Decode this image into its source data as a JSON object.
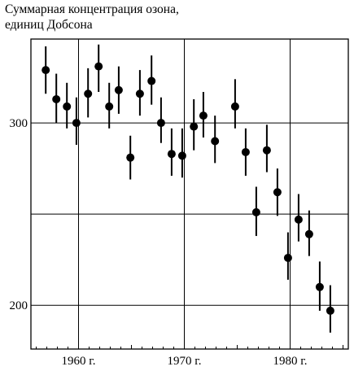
{
  "chart_data": {
    "type": "scatter",
    "title": "Суммарная концентрация озона,",
    "subtitle": "единиц Добсона",
    "xlabel": "",
    "ylabel": "",
    "xlim": [
      1955.5,
      1985.5
    ],
    "ylim": [
      176,
      346
    ],
    "grid": true,
    "x_ticks": [
      1960,
      1970,
      1980
    ],
    "x_tick_labels": [
      "1960 г.",
      "1970 г.",
      "1980 г."
    ],
    "y_ticks": [
      200,
      250,
      300
    ],
    "y_tick_labels": [
      "200",
      "",
      "300"
    ],
    "points": [
      {
        "x": 1956.9,
        "y": 329,
        "low": 316,
        "high": 342
      },
      {
        "x": 1957.9,
        "y": 313,
        "low": 300,
        "high": 327
      },
      {
        "x": 1958.9,
        "y": 309,
        "low": 297,
        "high": 322
      },
      {
        "x": 1959.8,
        "y": 300,
        "low": 288,
        "high": 314
      },
      {
        "x": 1960.9,
        "y": 316,
        "low": 303,
        "high": 330
      },
      {
        "x": 1961.9,
        "y": 331,
        "low": 317,
        "high": 343
      },
      {
        "x": 1962.9,
        "y": 309,
        "low": 297,
        "high": 322
      },
      {
        "x": 1963.8,
        "y": 318,
        "low": 305,
        "high": 331
      },
      {
        "x": 1964.9,
        "y": 281,
        "low": 269,
        "high": 293
      },
      {
        "x": 1965.8,
        "y": 316,
        "low": 304,
        "high": 329
      },
      {
        "x": 1966.9,
        "y": 323,
        "low": 310,
        "high": 337
      },
      {
        "x": 1967.8,
        "y": 300,
        "low": 289,
        "high": 314
      },
      {
        "x": 1968.8,
        "y": 283,
        "low": 271,
        "high": 297
      },
      {
        "x": 1969.8,
        "y": 282,
        "low": 270,
        "high": 297
      },
      {
        "x": 1970.9,
        "y": 298,
        "low": 285,
        "high": 313
      },
      {
        "x": 1971.8,
        "y": 304,
        "low": 292,
        "high": 317
      },
      {
        "x": 1972.9,
        "y": 290,
        "low": 278,
        "high": 304
      },
      {
        "x": 1974.8,
        "y": 309,
        "low": 297,
        "high": 324
      },
      {
        "x": 1975.8,
        "y": 284,
        "low": 271,
        "high": 297
      },
      {
        "x": 1976.8,
        "y": 251,
        "low": 238,
        "high": 265
      },
      {
        "x": 1977.8,
        "y": 285,
        "low": 273,
        "high": 299
      },
      {
        "x": 1978.8,
        "y": 262,
        "low": 249,
        "high": 275
      },
      {
        "x": 1979.8,
        "y": 226,
        "low": 214,
        "high": 240
      },
      {
        "x": 1980.8,
        "y": 247,
        "low": 235,
        "high": 261
      },
      {
        "x": 1981.8,
        "y": 239,
        "low": 227,
        "high": 252
      },
      {
        "x": 1982.8,
        "y": 210,
        "low": 197,
        "high": 224
      },
      {
        "x": 1983.8,
        "y": 197,
        "low": 185,
        "high": 211
      }
    ],
    "colors": {
      "marker": "#000000",
      "grid": "#000000",
      "background": "#ffffff"
    }
  }
}
